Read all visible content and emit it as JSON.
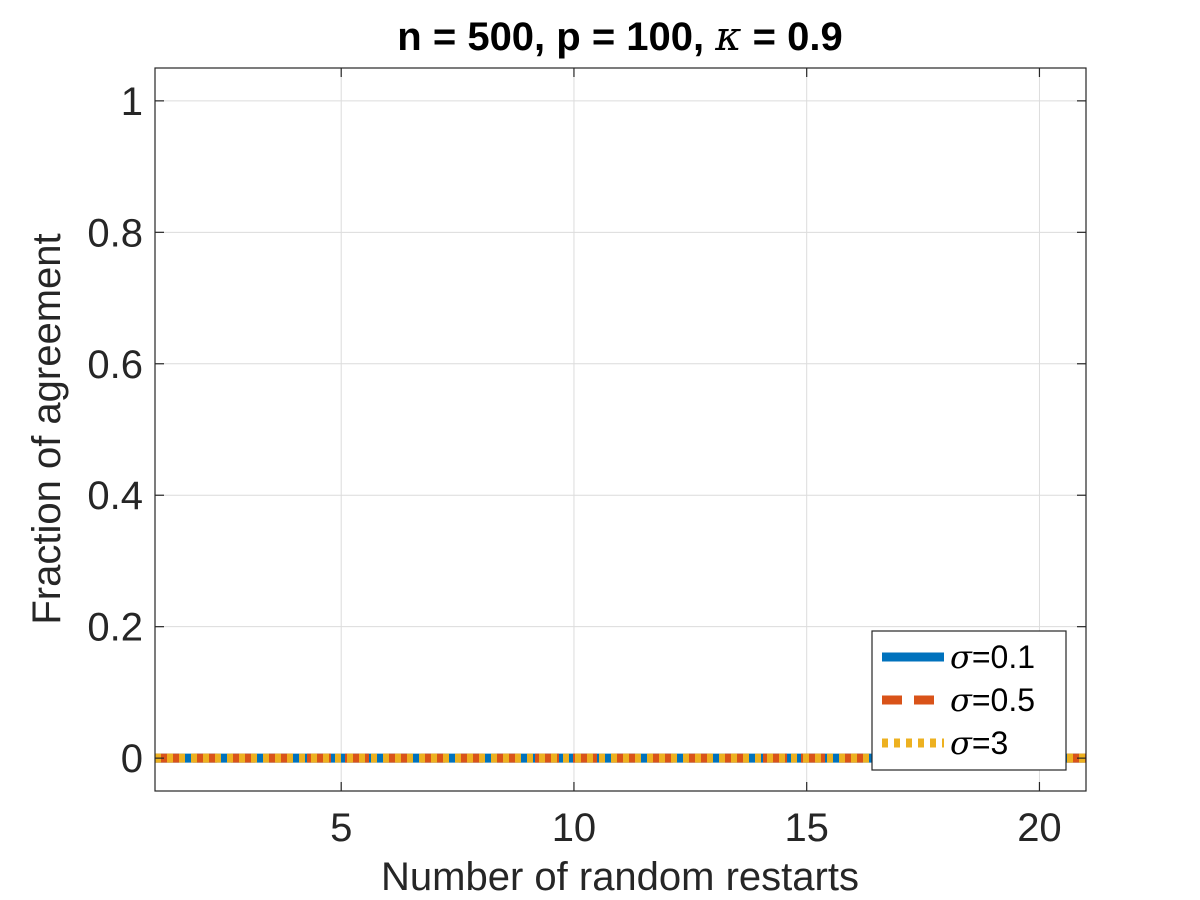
{
  "chart_data": {
    "type": "line",
    "title": {
      "prefix": "n = 500, p = 100, ",
      "symbol": "κ",
      "suffix": " = 0.9"
    },
    "xlabel": "Number of random restarts",
    "ylabel": "Fraction of agreement",
    "xlim": [
      1,
      21
    ],
    "ylim": [
      -0.05,
      1.05
    ],
    "xticks": [
      5,
      10,
      15,
      20
    ],
    "xtick_labels": [
      "5",
      "10",
      "15",
      "20"
    ],
    "yticks": [
      0,
      0.2,
      0.4,
      0.6,
      0.8,
      1
    ],
    "ytick_labels": [
      "0",
      "0.2",
      "0.4",
      "0.6",
      "0.8",
      "1"
    ],
    "grid": true,
    "legend_position": "bottom-right",
    "x": [
      1,
      2,
      3,
      4,
      5,
      6,
      7,
      8,
      9,
      10,
      11,
      12,
      13,
      14,
      15,
      16,
      17,
      18,
      19,
      20,
      21
    ],
    "series": [
      {
        "symbol": "σ",
        "name": "=0.1",
        "color": "#0072BD",
        "style": "solid",
        "values": [
          0,
          0,
          0,
          0,
          0,
          0,
          0,
          0,
          0,
          0,
          0,
          0,
          0,
          0,
          0,
          0,
          0,
          0,
          0,
          0,
          0
        ]
      },
      {
        "symbol": "σ",
        "name": "=0.5",
        "color": "#D95319",
        "style": "dashed",
        "values": [
          0,
          0,
          0,
          0,
          0,
          0,
          0,
          0,
          0,
          0,
          0,
          0,
          0,
          0,
          0,
          0,
          0,
          0,
          0,
          0,
          0
        ]
      },
      {
        "symbol": "σ",
        "name": "=3",
        "color": "#EDB120",
        "style": "dotted",
        "values": [
          0,
          0,
          0,
          0,
          0,
          0,
          0,
          0,
          0,
          0,
          0,
          0,
          0,
          0,
          0,
          0,
          0,
          0,
          0,
          0,
          0
        ]
      }
    ]
  }
}
